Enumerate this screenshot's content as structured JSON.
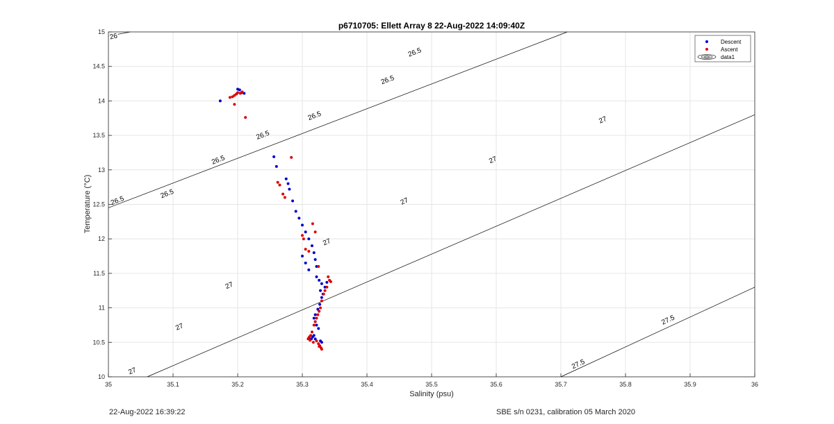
{
  "footer": {
    "left": "22-Aug-2022 16:39:22",
    "right": "SBE s/n 0231, calibration 05 March 2020"
  },
  "chart_data": {
    "type": "scatter",
    "title": "p6710705: Ellett Array 8 22-Aug-2022 14:09:40Z",
    "xlabel": "Salinity (psu)",
    "ylabel": "Temperature (°C)",
    "xlim": [
      35,
      36
    ],
    "ylim": [
      10,
      15
    ],
    "xticks": [
      35,
      35.1,
      35.2,
      35.3,
      35.4,
      35.5,
      35.6,
      35.7,
      35.8,
      35.9,
      36
    ],
    "xtick_labels": [
      "35",
      "35.1",
      "35.2",
      "35.3",
      "35.4",
      "35.5",
      "35.6",
      "35.7",
      "35.8",
      "35.9",
      "36"
    ],
    "yticks": [
      10,
      10.5,
      11,
      11.5,
      12,
      12.5,
      13,
      13.5,
      14,
      14.5,
      15
    ],
    "ytick_labels": [
      "10",
      "10.5",
      "11",
      "11.5",
      "12",
      "12.5",
      "13",
      "13.5",
      "14",
      "14.5",
      "15"
    ],
    "grid": true,
    "legend_position": "top-right",
    "legend": [
      "Descent",
      "Ascent",
      "data1"
    ],
    "colors": {
      "descent": "#0000cc",
      "ascent": "#dd0000",
      "contour": "#000000"
    },
    "series": [
      {
        "name": "Descent",
        "x": [
          35.173,
          35.2,
          35.203,
          35.206,
          35.21,
          35.256,
          35.26,
          35.275,
          35.278,
          35.28,
          35.285,
          35.29,
          35.295,
          35.3,
          35.305,
          35.31,
          35.315,
          35.318,
          35.32,
          35.322,
          35.3,
          35.305,
          35.31,
          35.322,
          35.326,
          35.33,
          35.328,
          35.332,
          35.335,
          35.338,
          35.33,
          35.327,
          35.324,
          35.32,
          35.318,
          35.32,
          35.322,
          35.325,
          35.318,
          35.316,
          35.31,
          35.314,
          35.32,
          35.328,
          35.33
        ],
        "y": [
          14.0,
          14.17,
          14.16,
          14.12,
          14.11,
          13.19,
          13.05,
          12.87,
          12.8,
          12.72,
          12.55,
          12.4,
          12.3,
          12.2,
          12.1,
          12.0,
          11.9,
          11.8,
          11.7,
          11.6,
          11.75,
          11.65,
          11.55,
          11.45,
          11.4,
          11.35,
          11.25,
          11.2,
          11.3,
          11.37,
          11.15,
          11.05,
          10.98,
          10.9,
          10.85,
          10.8,
          10.75,
          10.7,
          10.6,
          10.58,
          10.56,
          10.55,
          10.55,
          10.52,
          10.5
        ]
      },
      {
        "name": "Ascent",
        "x": [
          35.188,
          35.192,
          35.195,
          35.198,
          35.2,
          35.204,
          35.207,
          35.195,
          35.212,
          35.283,
          35.262,
          35.265,
          35.27,
          35.273,
          35.3,
          35.302,
          35.305,
          35.31,
          35.316,
          35.32,
          35.325,
          35.34,
          35.342,
          35.344,
          35.338,
          35.335,
          35.333,
          35.33,
          35.328,
          35.326,
          35.324,
          35.322,
          35.32,
          35.318,
          35.315,
          35.313,
          35.311,
          35.309,
          35.312,
          35.317,
          35.322,
          35.325,
          35.327,
          35.329,
          35.33,
          35.326
        ],
        "y": [
          14.05,
          14.06,
          14.08,
          14.1,
          14.12,
          14.11,
          14.13,
          13.95,
          13.76,
          13.18,
          12.82,
          12.78,
          12.65,
          12.6,
          12.05,
          12.0,
          11.85,
          11.82,
          12.22,
          12.1,
          11.6,
          11.45,
          11.4,
          11.38,
          11.3,
          11.25,
          11.2,
          11.1,
          11.0,
          10.95,
          10.9,
          10.85,
          10.8,
          10.75,
          10.65,
          10.6,
          10.58,
          10.55,
          10.53,
          10.5,
          10.52,
          10.48,
          10.45,
          10.42,
          10.4,
          10.44
        ]
      }
    ],
    "contours": [
      {
        "level": 26,
        "from": [
          35.0,
          14.94
        ],
        "to": [
          35.034,
          15.0
        ],
        "labels": [
          [
            "26",
            35.008,
            14.93
          ]
        ]
      },
      {
        "level": 26.5,
        "from": [
          35.0,
          12.45
        ],
        "to": [
          35.71,
          15.0
        ],
        "labels": [
          [
            "26.5",
            35.014,
            12.55
          ],
          [
            "26.5",
            35.091,
            12.65
          ],
          [
            "26.5",
            35.17,
            13.14
          ],
          [
            "26.5",
            35.239,
            13.5
          ],
          [
            "26.5",
            35.319,
            13.78
          ],
          [
            "26.5",
            35.432,
            14.3
          ],
          [
            "26.5",
            35.474,
            14.7
          ]
        ]
      },
      {
        "level": 27,
        "from": [
          35.06,
          10.0
        ],
        "to": [
          36.0,
          13.8
        ],
        "labels": [
          [
            "27",
            35.037,
            10.08
          ],
          [
            "27",
            35.11,
            10.72
          ],
          [
            "27",
            35.187,
            11.32
          ],
          [
            "27",
            35.338,
            11.95
          ],
          [
            "27",
            35.458,
            12.54
          ],
          [
            "27",
            35.595,
            13.14
          ],
          [
            "27",
            35.765,
            13.72
          ]
        ]
      },
      {
        "level": 27.5,
        "from": [
          35.7,
          10.0
        ],
        "to": [
          36.0,
          11.3
        ],
        "labels": [
          [
            "27.5",
            35.727,
            10.18
          ],
          [
            "27.5",
            35.866,
            10.82
          ]
        ]
      }
    ]
  }
}
